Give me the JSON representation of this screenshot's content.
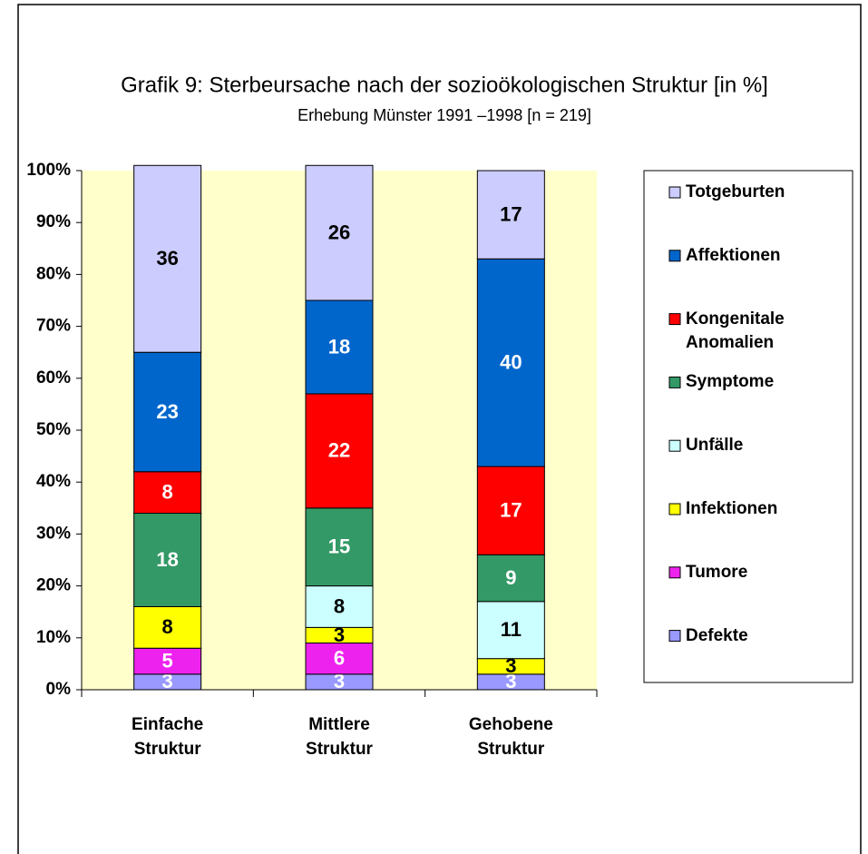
{
  "chart_data": {
    "type": "stacked_bar",
    "title": "Grafik 9: Sterbeursache nach der sozioökologischen Struktur [in %]",
    "subtitle": "Erhebung Münster 1991 –1998  [n = 219]",
    "categories": [
      "Einfache Struktur",
      "Mittlere Struktur",
      "Gehobene Struktur"
    ],
    "series": [
      {
        "name": "Defekte",
        "color": "#9999ff",
        "values": [
          3,
          3,
          3
        ]
      },
      {
        "name": "Tumore",
        "color": "#ee22ee",
        "values": [
          5,
          6,
          0
        ]
      },
      {
        "name": "Infektionen",
        "color": "#ffff00",
        "values": [
          8,
          3,
          3
        ]
      },
      {
        "name": "Unfälle",
        "color": "#ccffff",
        "values": [
          0,
          8,
          11
        ]
      },
      {
        "name": "Symptome",
        "color": "#339966",
        "values": [
          18,
          15,
          9
        ]
      },
      {
        "name": "Kongenitale Anomalien",
        "color": "#ff0000",
        "values": [
          8,
          22,
          17
        ]
      },
      {
        "name": "Affektionen",
        "color": "#0066cc",
        "values": [
          23,
          18,
          40
        ]
      },
      {
        "name": "Totgeburten",
        "color": "#ccccff",
        "values": [
          36,
          26,
          17
        ]
      }
    ],
    "ylim": [
      0,
      100
    ],
    "yticks": [
      {
        "value": 0,
        "label": "0%"
      },
      {
        "value": 10,
        "label": "10%"
      },
      {
        "value": 20,
        "label": "20%"
      },
      {
        "value": 30,
        "label": "30%"
      },
      {
        "value": 40,
        "label": "40%"
      },
      {
        "value": 50,
        "label": "50%"
      },
      {
        "value": 60,
        "label": "60%"
      },
      {
        "value": 70,
        "label": "70%"
      },
      {
        "value": 80,
        "label": "80%"
      },
      {
        "value": 90,
        "label": "90%"
      },
      {
        "value": 100,
        "label": "100%"
      }
    ],
    "plot_background": "#ffffcc",
    "legend": "right"
  }
}
